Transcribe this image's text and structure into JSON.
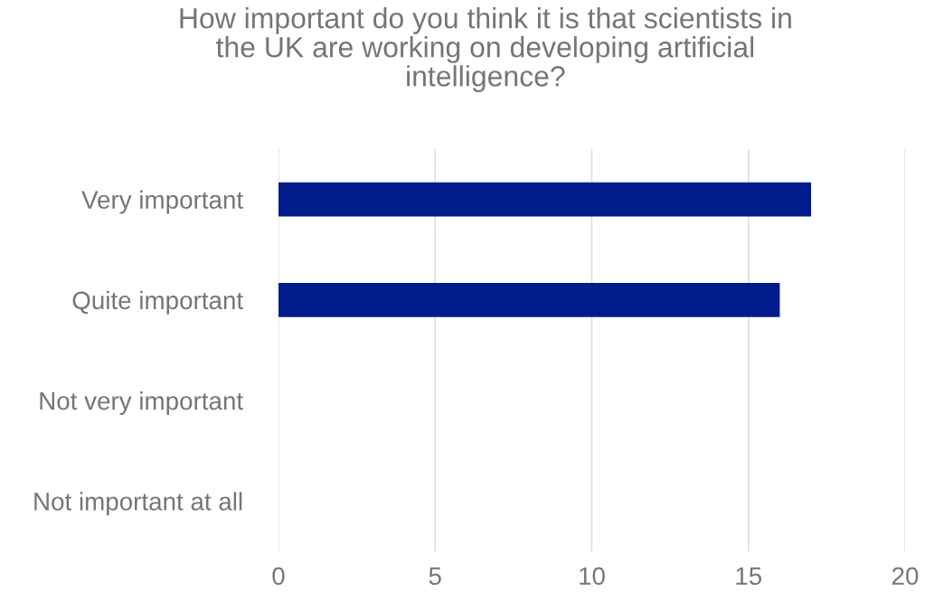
{
  "chart_data": {
    "type": "bar",
    "orientation": "horizontal",
    "title": "How important do you think it is that scientists in\nthe UK are working on developing artificial\nintelligence?",
    "categories": [
      "Very important",
      "Quite important",
      "Not very important",
      "Not important at all"
    ],
    "values": [
      17,
      16,
      0,
      0
    ],
    "color": "#001c8c",
    "xlim": [
      0,
      20
    ],
    "xticks": [
      0,
      5,
      10,
      15,
      20
    ],
    "grid": "x"
  }
}
